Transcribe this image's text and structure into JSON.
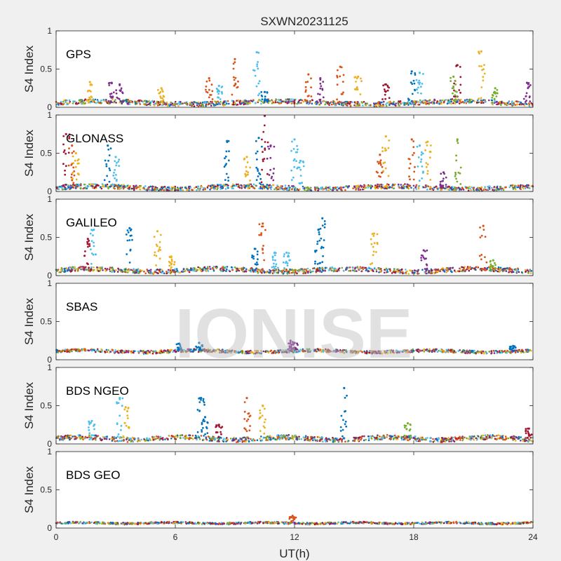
{
  "chart_data": {
    "type": "scatter",
    "title": "SXWN20231125",
    "xlabel": "UT(h)",
    "ylabel": "S4 Index",
    "xlim": [
      0,
      24
    ],
    "ylim": [
      0,
      1
    ],
    "xticks": [
      "0",
      "6",
      "12",
      "18",
      "24"
    ],
    "yticks": [
      "0",
      "0.5",
      "1"
    ],
    "grid": false,
    "watermark": "IONISE",
    "palette": [
      "#0072bd",
      "#d95319",
      "#edb120",
      "#7e2f8e",
      "#77ac30",
      "#4dbeee",
      "#a2142f"
    ],
    "panels": [
      {
        "label": "GPS",
        "baseline": 0.06,
        "noise": 0.03,
        "spikes": [
          {
            "x": 1.7,
            "y": 0.33,
            "c": 2
          },
          {
            "x": 2.8,
            "y": 0.32,
            "c": 3
          },
          {
            "x": 3.2,
            "y": 0.3,
            "c": 3
          },
          {
            "x": 5.3,
            "y": 0.25,
            "c": 2
          },
          {
            "x": 7.7,
            "y": 0.38,
            "c": 1
          },
          {
            "x": 8.2,
            "y": 0.28,
            "c": 5
          },
          {
            "x": 9.0,
            "y": 0.63,
            "c": 1
          },
          {
            "x": 10.1,
            "y": 0.72,
            "c": 5
          },
          {
            "x": 10.5,
            "y": 0.2,
            "c": 0
          },
          {
            "x": 12.7,
            "y": 0.43,
            "c": 1
          },
          {
            "x": 13.3,
            "y": 0.38,
            "c": 3
          },
          {
            "x": 14.3,
            "y": 0.53,
            "c": 1
          },
          {
            "x": 15.2,
            "y": 0.4,
            "c": 2
          },
          {
            "x": 16.6,
            "y": 0.3,
            "c": 6
          },
          {
            "x": 17.9,
            "y": 0.47,
            "c": 0
          },
          {
            "x": 18.3,
            "y": 0.45,
            "c": 5
          },
          {
            "x": 20.2,
            "y": 0.55,
            "c": 6
          },
          {
            "x": 21.4,
            "y": 0.73,
            "c": 2
          },
          {
            "x": 20.0,
            "y": 0.4,
            "c": 4
          },
          {
            "x": 22.1,
            "y": 0.25,
            "c": 4
          },
          {
            "x": 23.7,
            "y": 0.32,
            "c": 3
          }
        ]
      },
      {
        "label": "GLONASS",
        "baseline": 0.05,
        "noise": 0.03,
        "spikes": [
          {
            "x": 0.5,
            "y": 0.75,
            "c": 6
          },
          {
            "x": 0.8,
            "y": 0.6,
            "c": 1
          },
          {
            "x": 1.0,
            "y": 0.5,
            "c": 2
          },
          {
            "x": 2.6,
            "y": 0.6,
            "c": 0
          },
          {
            "x": 3.0,
            "y": 0.45,
            "c": 5
          },
          {
            "x": 8.6,
            "y": 0.66,
            "c": 0
          },
          {
            "x": 9.6,
            "y": 0.45,
            "c": 2
          },
          {
            "x": 10.2,
            "y": 0.7,
            "c": 0
          },
          {
            "x": 10.5,
            "y": 0.99,
            "c": 6
          },
          {
            "x": 10.8,
            "y": 0.6,
            "c": 3
          },
          {
            "x": 12.0,
            "y": 0.68,
            "c": 5
          },
          {
            "x": 12.3,
            "y": 0.4,
            "c": 5
          },
          {
            "x": 16.3,
            "y": 0.48,
            "c": 1
          },
          {
            "x": 16.6,
            "y": 0.72,
            "c": 2
          },
          {
            "x": 17.9,
            "y": 0.68,
            "c": 1
          },
          {
            "x": 18.3,
            "y": 0.6,
            "c": 5
          },
          {
            "x": 18.7,
            "y": 0.65,
            "c": 2
          },
          {
            "x": 20.2,
            "y": 0.68,
            "c": 4
          },
          {
            "x": 19.5,
            "y": 0.25,
            "c": 3
          }
        ]
      },
      {
        "label": "GALILEO",
        "baseline": 0.07,
        "noise": 0.03,
        "spikes": [
          {
            "x": 1.6,
            "y": 0.48,
            "c": 6
          },
          {
            "x": 1.9,
            "y": 0.6,
            "c": 5
          },
          {
            "x": 3.7,
            "y": 0.62,
            "c": 0
          },
          {
            "x": 5.1,
            "y": 0.58,
            "c": 2
          },
          {
            "x": 5.8,
            "y": 0.25,
            "c": 2
          },
          {
            "x": 10.4,
            "y": 0.68,
            "c": 1
          },
          {
            "x": 10.0,
            "y": 0.35,
            "c": 0
          },
          {
            "x": 11.0,
            "y": 0.3,
            "c": 5
          },
          {
            "x": 11.6,
            "y": 0.3,
            "c": 5
          },
          {
            "x": 13.2,
            "y": 0.6,
            "c": 0
          },
          {
            "x": 13.4,
            "y": 0.75,
            "c": 0
          },
          {
            "x": 16.0,
            "y": 0.55,
            "c": 2
          },
          {
            "x": 18.5,
            "y": 0.33,
            "c": 3
          },
          {
            "x": 21.5,
            "y": 0.65,
            "c": 1
          },
          {
            "x": 22.0,
            "y": 0.2,
            "c": 4
          }
        ]
      },
      {
        "label": "SBAS",
        "baseline": 0.11,
        "noise": 0.02,
        "spikes": [
          {
            "x": 6.2,
            "y": 0.21,
            "c": 0
          },
          {
            "x": 7.2,
            "y": 0.22,
            "c": 0
          },
          {
            "x": 11.8,
            "y": 0.25,
            "c": 3
          },
          {
            "x": 12.0,
            "y": 0.22,
            "c": 3
          },
          {
            "x": 23.0,
            "y": 0.18,
            "c": 0
          }
        ]
      },
      {
        "label": "BDS NGEO",
        "baseline": 0.07,
        "noise": 0.03,
        "spikes": [
          {
            "x": 1.8,
            "y": 0.3,
            "c": 5
          },
          {
            "x": 3.2,
            "y": 0.6,
            "c": 5
          },
          {
            "x": 3.5,
            "y": 0.48,
            "c": 2
          },
          {
            "x": 7.3,
            "y": 0.6,
            "c": 0
          },
          {
            "x": 7.5,
            "y": 0.35,
            "c": 0
          },
          {
            "x": 8.2,
            "y": 0.25,
            "c": 6
          },
          {
            "x": 9.6,
            "y": 0.6,
            "c": 1
          },
          {
            "x": 10.4,
            "y": 0.5,
            "c": 2
          },
          {
            "x": 14.5,
            "y": 0.73,
            "c": 0
          },
          {
            "x": 17.7,
            "y": 0.27,
            "c": 4
          },
          {
            "x": 23.8,
            "y": 0.2,
            "c": 6
          }
        ]
      },
      {
        "label": "BDS GEO",
        "baseline": 0.065,
        "noise": 0.012,
        "spikes": [
          {
            "x": 11.9,
            "y": 0.16,
            "c": 1
          }
        ]
      }
    ]
  }
}
